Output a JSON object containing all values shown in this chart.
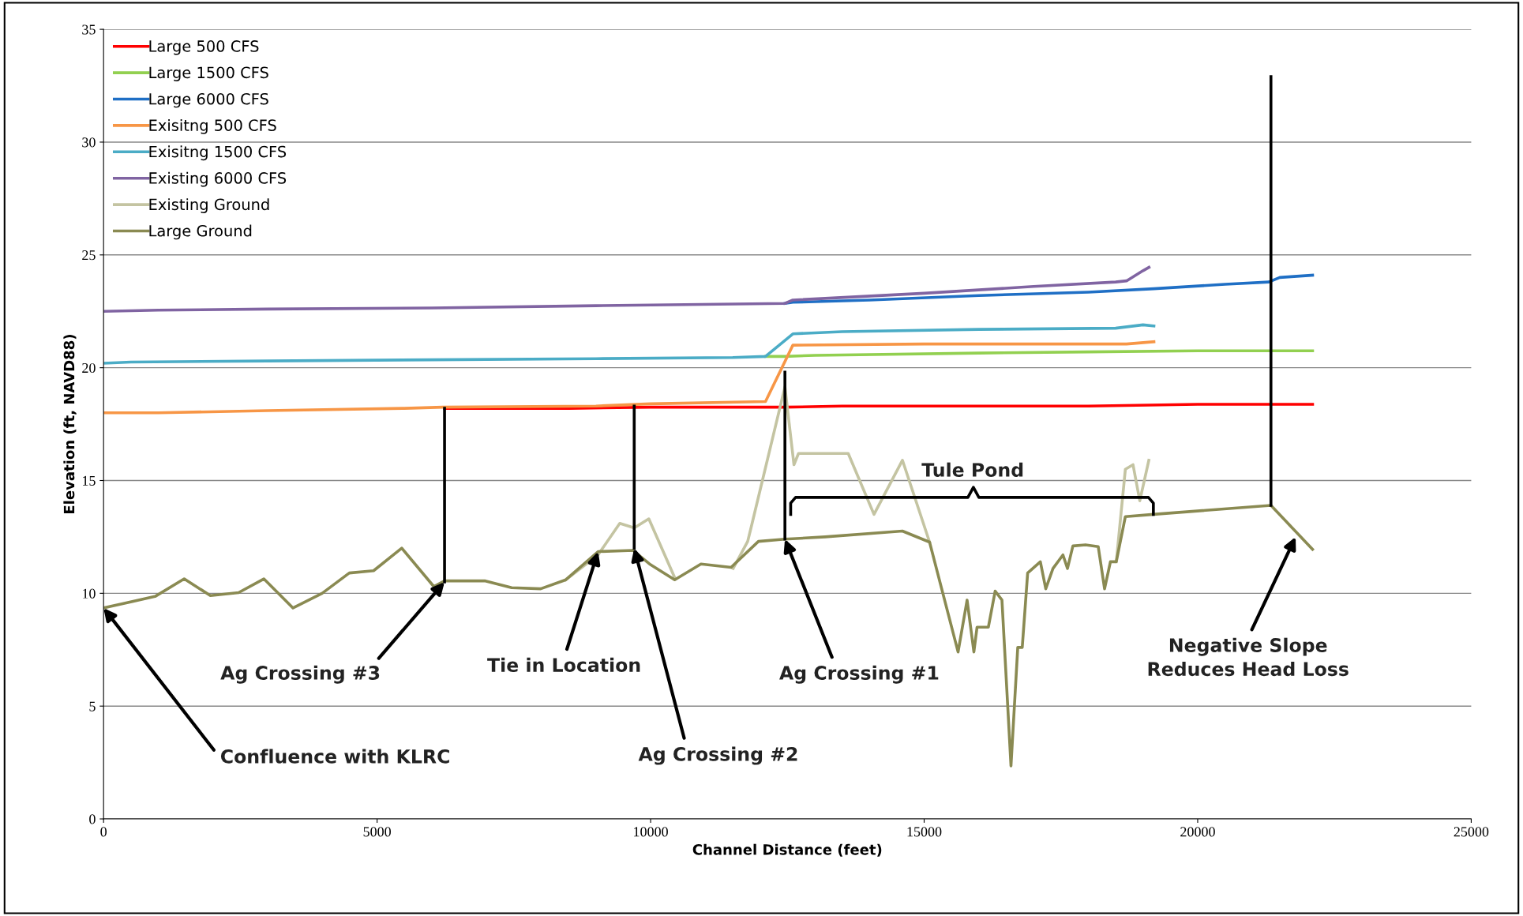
{
  "chart_data": {
    "type": "line",
    "xlabel": "Channel Distance (feet)",
    "ylabel": "Elevation (ft, NAVD88)",
    "xlim": [
      0,
      25000
    ],
    "xticks": [
      0,
      5000,
      10000,
      15000,
      20000,
      25000
    ],
    "ylim": [
      0,
      35
    ],
    "yticks": [
      0,
      5,
      10,
      15,
      20,
      25,
      30,
      35
    ],
    "grid": "y",
    "legend": "top left",
    "marker": "none",
    "line_style": "solid",
    "series": [
      {
        "name": "Large 500 CFS",
        "color": "#ff0000",
        "x": [
          6233,
          8500,
          10000,
          12455,
          13500,
          18000,
          20000,
          22100
        ],
        "values": [
          18.2,
          18.2,
          18.25,
          18.25,
          18.3,
          18.3,
          18.38,
          18.38
        ]
      },
      {
        "name": "Large 1500 CFS",
        "color": "#92d050",
        "x": [
          12100,
          12455,
          13000,
          16000,
          18000,
          20000,
          22100
        ],
        "values": [
          20.5,
          20.5,
          20.55,
          20.65,
          20.7,
          20.75,
          20.75
        ]
      },
      {
        "name": "Large 6000 CFS",
        "color": "#1f6fc5",
        "x": [
          12455,
          12600,
          14000,
          16000,
          18000,
          19200,
          20500,
          21300,
          21500,
          22100
        ],
        "values": [
          22.85,
          22.9,
          23.0,
          23.2,
          23.35,
          23.5,
          23.7,
          23.8,
          24.0,
          24.1
        ]
      },
      {
        "name": "Exisitng 500 CFS",
        "color": "#f79646",
        "x": [
          0,
          1000,
          3000,
          5500,
          6200,
          9000,
          10000,
          12100,
          12600,
          15000,
          18700,
          19200
        ],
        "values": [
          18.0,
          18.0,
          18.1,
          18.2,
          18.25,
          18.3,
          18.4,
          18.5,
          21.0,
          21.05,
          21.05,
          21.15
        ]
      },
      {
        "name": "Exisitng 1500 CFS",
        "color": "#4bacc6",
        "x": [
          0,
          500,
          3000,
          6000,
          9000,
          11500,
          12100,
          12600,
          13500,
          16000,
          18500,
          19000,
          19200
        ],
        "values": [
          20.2,
          20.25,
          20.3,
          20.35,
          20.4,
          20.45,
          20.5,
          21.5,
          21.6,
          21.7,
          21.75,
          21.9,
          21.85
        ]
      },
      {
        "name": "Existing 6000 CFS",
        "color": "#8064a2",
        "x": [
          0,
          1000,
          3000,
          6000,
          9000,
          12455,
          12600,
          15000,
          17000,
          18500,
          18700,
          19000,
          19110
        ],
        "values": [
          22.5,
          22.55,
          22.6,
          22.65,
          22.75,
          22.85,
          23.0,
          23.3,
          23.6,
          23.8,
          23.85,
          24.3,
          24.45
        ]
      },
      {
        "name": "Existing Ground",
        "color": "#c4c4a2",
        "x": [
          8450,
          9038,
          9436,
          9700,
          9967,
          10448,
          null,
          11509,
          11774,
          11835,
          12455,
          12620,
          12703,
          13612,
          14083,
          14603,
          15099,
          null,
          18512,
          18678,
          18818,
          18942,
          19107
        ],
        "values": [
          10.6,
          11.7,
          13.1,
          12.9,
          13.3,
          10.65,
          null,
          11.1,
          12.3,
          12.9,
          19.15,
          15.7,
          16.2,
          16.2,
          13.5,
          15.9,
          12.27,
          null,
          11.4,
          15.5,
          15.7,
          14.1,
          15.9
        ]
      },
      {
        "name": "Large Ground",
        "color": "#8a8a52",
        "x": [
          0,
          941,
          1474,
          1953,
          2468,
          2930,
          3463,
          3995,
          4492,
          4936,
          5451,
          6037,
          6233,
          6980,
          7460,
          7990,
          8450,
          9040,
          9680,
          9980,
          10440,
          10920,
          11470,
          11970,
          12455,
          13190,
          14603,
          15099,
          15620,
          15785,
          15909,
          15967,
          16174,
          16298,
          16422,
          16587,
          16711,
          16793,
          16892,
          17124,
          17223,
          17355,
          17537,
          17620,
          17719,
          17950,
          18182,
          18298,
          18405,
          18512,
          18678,
          19190,
          21339,
          22100
        ],
        "values": [
          9.35,
          9.86,
          10.64,
          9.9,
          10.03,
          10.64,
          9.35,
          10.0,
          10.9,
          11.0,
          12.0,
          10.3,
          10.55,
          10.55,
          10.25,
          10.2,
          10.6,
          11.85,
          11.9,
          11.3,
          10.6,
          11.3,
          11.15,
          12.3,
          12.4,
          12.5,
          12.76,
          12.27,
          7.4,
          9.7,
          7.4,
          8.5,
          8.5,
          10.1,
          9.7,
          2.35,
          7.6,
          7.6,
          10.9,
          11.4,
          10.2,
          11.1,
          11.7,
          11.1,
          12.1,
          12.15,
          12.07,
          10.2,
          11.4,
          11.4,
          13.4,
          13.5,
          13.9,
          11.95
        ]
      },
      {
        "color": "#000000",
        "x": [
          6233,
          6233,
          null,
          9700,
          9700,
          null,
          12455,
          12455,
          null,
          21339,
          21339
        ],
        "values": [
          10.5,
          18.2,
          null,
          12.0,
          18.3,
          null,
          12.4,
          19.8,
          null,
          13.9,
          32.9
        ]
      }
    ],
    "annotations": [
      {
        "text": "Confluence with KLRC",
        "x": 0,
        "y": 9.35
      },
      {
        "text": "Ag Crossing #3",
        "x": 6233,
        "y": 10.5
      },
      {
        "text": "Tie in Location",
        "x": 9040,
        "y": 11.85
      },
      {
        "text": "Ag Crossing #2",
        "x": 9700,
        "y": 12.0
      },
      {
        "text": "Ag Crossing #1",
        "x": 12455,
        "y": 12.4
      },
      "Tule Pond",
      {
        "text": "Negative Slope\nReduces Head Loss",
        "x": 21790,
        "y": 12.5
      }
    ]
  }
}
